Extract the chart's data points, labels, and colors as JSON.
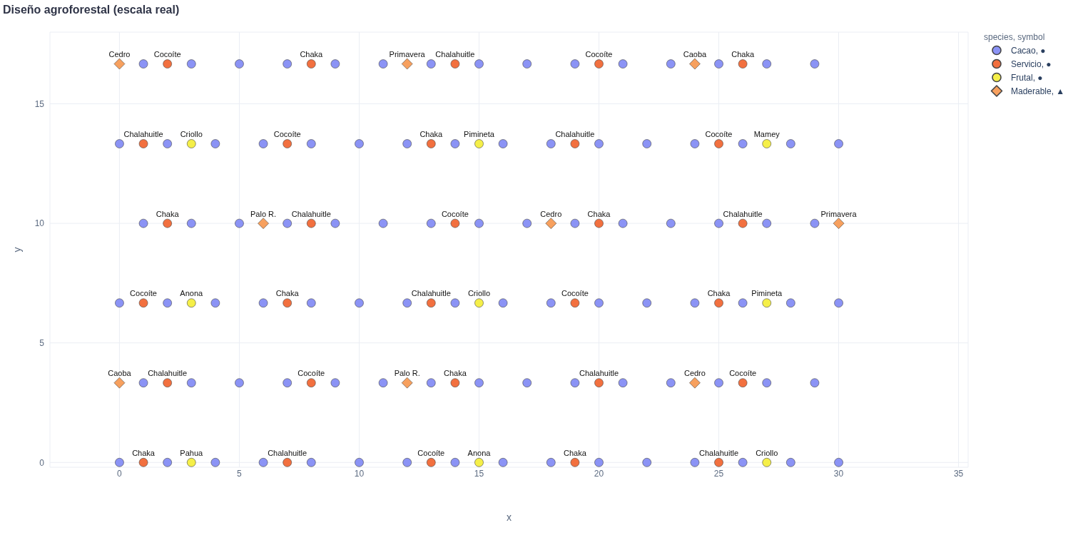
{
  "chart_data": {
    "type": "scatter",
    "title": "Diseño agroforestal (escala real)",
    "xlabel": "x",
    "ylabel": "y",
    "legend_title": "species, symbol",
    "legend": "top right",
    "grid": true,
    "xlim": [
      -2.9,
      35.4
    ],
    "ylim": [
      -0.2,
      18
    ],
    "xticks": [
      0,
      5,
      10,
      15,
      20,
      25,
      30,
      35
    ],
    "yticks": [
      0,
      5,
      10,
      15
    ],
    "series": [
      {
        "name": "Cacao, ●",
        "color": "#8b93f5",
        "marker": "circle",
        "x": [
          1,
          3,
          5,
          7,
          9,
          11,
          13,
          15,
          17,
          19,
          21,
          23,
          25,
          27,
          29,
          0,
          2,
          4,
          6,
          8,
          10,
          12,
          14,
          16,
          18,
          20,
          22,
          24,
          26,
          28,
          30,
          1,
          3,
          5,
          7,
          9,
          11,
          13,
          15,
          17,
          19,
          21,
          23,
          25,
          27,
          29,
          0,
          2,
          4,
          6,
          8,
          10,
          12,
          14,
          16,
          18,
          20,
          22,
          24,
          26,
          28,
          30,
          1,
          3,
          5,
          7,
          9,
          11,
          13,
          15,
          17,
          19,
          21,
          23,
          25,
          27,
          29,
          0,
          2,
          4,
          6,
          8,
          10,
          12,
          14,
          16,
          18,
          20,
          22,
          24,
          26,
          28,
          30
        ],
        "values": [
          16.67,
          16.67,
          16.67,
          16.67,
          16.67,
          16.67,
          16.67,
          16.67,
          16.67,
          16.67,
          16.67,
          16.67,
          16.67,
          16.67,
          16.67,
          13.33,
          13.33,
          13.33,
          13.33,
          13.33,
          13.33,
          13.33,
          13.33,
          13.33,
          13.33,
          13.33,
          13.33,
          13.33,
          13.33,
          13.33,
          13.33,
          10,
          10,
          10,
          10,
          10,
          10,
          10,
          10,
          10,
          10,
          10,
          10,
          10,
          10,
          10,
          6.67,
          6.67,
          6.67,
          6.67,
          6.67,
          6.67,
          6.67,
          6.67,
          6.67,
          6.67,
          6.67,
          6.67,
          6.67,
          6.67,
          6.67,
          6.67,
          3.33,
          3.33,
          3.33,
          3.33,
          3.33,
          3.33,
          3.33,
          3.33,
          3.33,
          3.33,
          3.33,
          3.33,
          3.33,
          3.33,
          3.33,
          0,
          0,
          0,
          0,
          0,
          0,
          0,
          0,
          0,
          0,
          0,
          0,
          0,
          0,
          0,
          0
        ]
      },
      {
        "name": "Servicio, ●",
        "color": "#f2703f",
        "marker": "circle",
        "x": [
          2,
          8,
          14,
          20,
          26,
          1,
          7,
          13,
          19,
          25,
          2,
          8,
          14,
          20,
          26,
          1,
          7,
          13,
          19,
          25,
          2,
          8,
          14,
          20,
          26,
          1,
          7,
          13,
          19,
          25
        ],
        "values": [
          16.67,
          16.67,
          16.67,
          16.67,
          16.67,
          13.33,
          13.33,
          13.33,
          13.33,
          13.33,
          10,
          10,
          10,
          10,
          10,
          6.67,
          6.67,
          6.67,
          6.67,
          6.67,
          3.33,
          3.33,
          3.33,
          3.33,
          3.33,
          0,
          0,
          0,
          0,
          0
        ],
        "value_labels": [
          "Cocoíte",
          "Chaka",
          "Chalahuitle",
          "Cocoíte",
          "Chaka",
          "Chalahuitle",
          "Cocoíte",
          "Chaka",
          "Chalahuitle",
          "Cocoíte",
          "Chaka",
          "Chalahuitle",
          "Cocoíte",
          "Chaka",
          "Chalahuitle",
          "Cocoíte",
          "Chaka",
          "Chalahuitle",
          "Cocoíte",
          "Chaka",
          "Chalahuitle",
          "Cocoíte",
          "Chaka",
          "Chalahuitle",
          "Cocoíte",
          "Chaka",
          "Chalahuitle",
          "Cocoíte",
          "Chaka",
          "Chalahuitle"
        ]
      },
      {
        "name": "Frutal, ●",
        "color": "#f5ef48",
        "marker": "circle",
        "x": [
          3,
          15,
          27,
          3,
          15,
          27,
          3,
          15,
          27
        ],
        "values": [
          13.33,
          13.33,
          13.33,
          6.67,
          6.67,
          6.67,
          0,
          0,
          0
        ],
        "value_labels": [
          "Criollo",
          "Pimineta",
          "Mamey",
          "Anona",
          "Criollo",
          "Pimineta",
          "Pahua",
          "Anona",
          "Criollo"
        ]
      },
      {
        "name": "Maderable, ▲",
        "color": "#f7a05e",
        "marker": "diamond",
        "x": [
          0,
          12,
          24,
          6,
          18,
          30,
          0,
          12,
          24
        ],
        "values": [
          16.67,
          16.67,
          16.67,
          10,
          10,
          10,
          3.33,
          3.33,
          3.33
        ],
        "value_labels": [
          "Cedro",
          "Primavera",
          "Caoba",
          "Palo R.",
          "Cedro",
          "Primavera",
          "Caoba",
          "Palo R.",
          "Cedro"
        ]
      }
    ]
  }
}
